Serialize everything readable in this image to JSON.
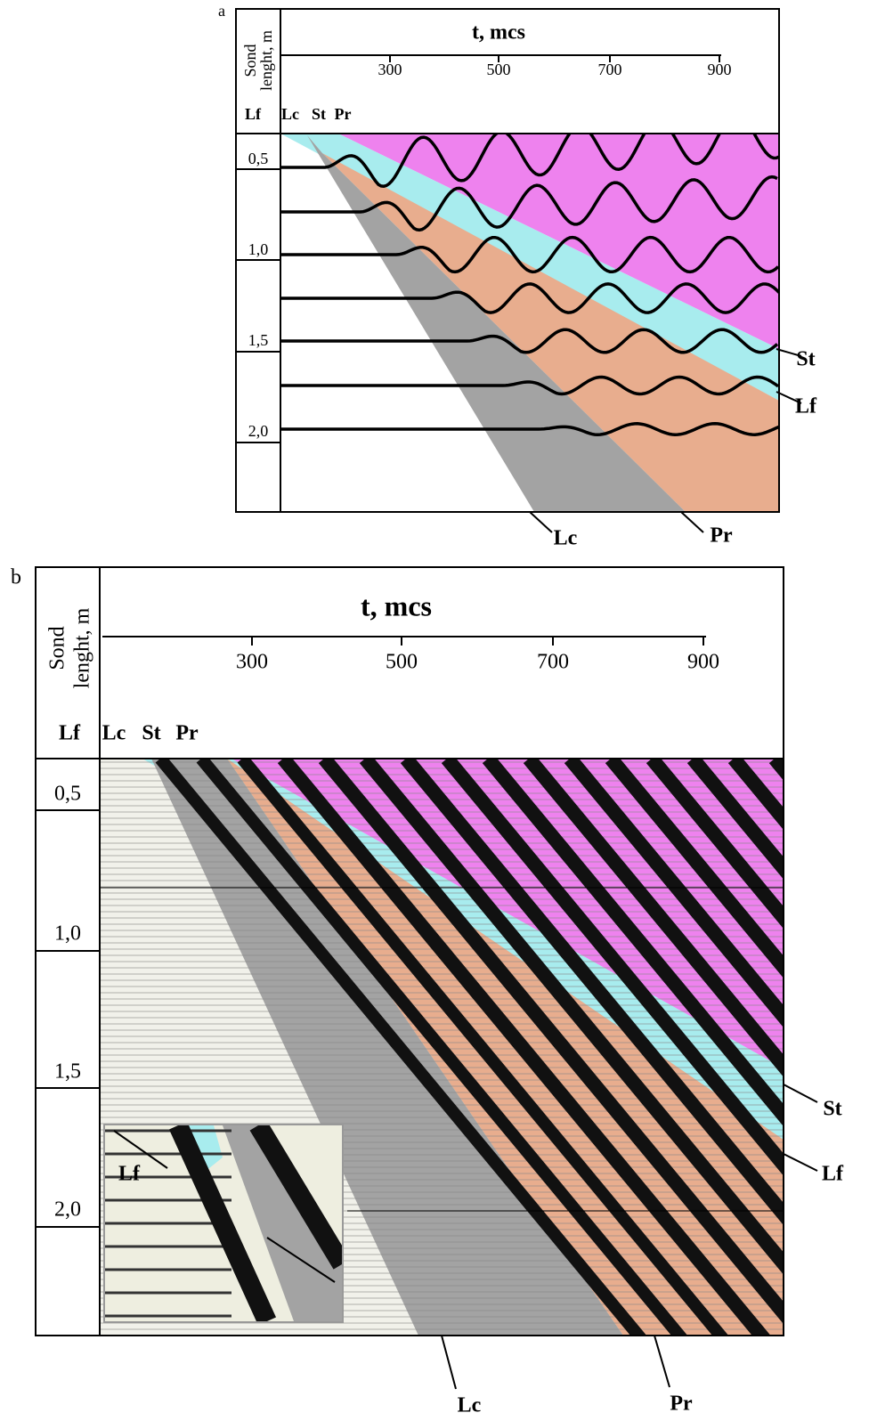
{
  "panel_a": {
    "label": "a",
    "x_axis_title": "t, mcs",
    "y_axis_title": [
      "Sond",
      "lenght, m"
    ],
    "x_ticks": [
      300,
      500,
      700,
      900
    ],
    "y_ticks": [
      "0,5",
      "1,0",
      "1,5",
      "2,0"
    ],
    "top_labels": [
      "Lf",
      "Lc",
      "St",
      "Pr"
    ],
    "side_labels": [
      "St",
      "Lf"
    ],
    "bottom_labels": [
      "Lc",
      "Pr"
    ]
  },
  "panel_b": {
    "label": "b",
    "x_axis_title": "t, mcs",
    "y_axis_title": [
      "Sond",
      "lenght, m"
    ],
    "x_ticks": [
      300,
      500,
      700,
      900
    ],
    "y_ticks": [
      "0,5",
      "1,0",
      "1,5",
      "2,0"
    ],
    "top_labels": [
      "Lf",
      "Lc",
      "St",
      "Pr"
    ],
    "side_labels": [
      "St",
      "Lf"
    ],
    "bottom_labels": [
      "Lc",
      "Pr"
    ],
    "inset_label": "Lf"
  }
}
